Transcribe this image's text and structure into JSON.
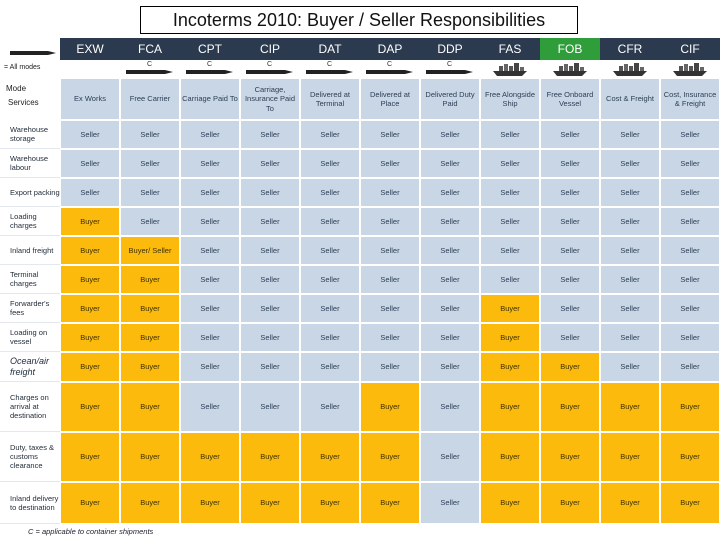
{
  "title": "Incoterms 2010: Buyer / Seller Responsibilities",
  "left_labels": {
    "all_modes": "= All modes",
    "mode": "Mode",
    "services": "Services"
  },
  "terms": [
    {
      "code": "EXW",
      "name": "Ex Works",
      "container": false,
      "transport": "all"
    },
    {
      "code": "FCA",
      "name": "Free Carrier",
      "container": true,
      "transport": "all"
    },
    {
      "code": "CPT",
      "name": "Carriage Paid To",
      "container": true,
      "transport": "all"
    },
    {
      "code": "CIP",
      "name": "Carriage, Insurance Paid To",
      "container": true,
      "transport": "all"
    },
    {
      "code": "DAT",
      "name": "Delivered at Terminal",
      "container": true,
      "transport": "all"
    },
    {
      "code": "DAP",
      "name": "Delivered at Place",
      "container": true,
      "transport": "all"
    },
    {
      "code": "DDP",
      "name": "Delivered Duty Paid",
      "container": true,
      "transport": "all"
    },
    {
      "code": "FAS",
      "name": "Free Alongside Ship",
      "container": false,
      "transport": "sea"
    },
    {
      "code": "FOB",
      "name": "Free Onboard Vessel",
      "container": false,
      "transport": "sea"
    },
    {
      "code": "CFR",
      "name": "Cost & Freight",
      "container": false,
      "transport": "sea"
    },
    {
      "code": "CIF",
      "name": "Cost, Insurance & Freight",
      "container": false,
      "transport": "sea"
    }
  ],
  "container_mark": "C",
  "rows": [
    {
      "label": "Warehouse storage",
      "values": [
        "Seller",
        "Seller",
        "Seller",
        "Seller",
        "Seller",
        "Seller",
        "Seller",
        "Seller",
        "Seller",
        "Seller",
        "Seller"
      ]
    },
    {
      "label": "Warehouse labour",
      "values": [
        "Seller",
        "Seller",
        "Seller",
        "Seller",
        "Seller",
        "Seller",
        "Seller",
        "Seller",
        "Seller",
        "Seller",
        "Seller"
      ]
    },
    {
      "label": "Export packing",
      "values": [
        "Seller",
        "Seller",
        "Seller",
        "Seller",
        "Seller",
        "Seller",
        "Seller",
        "Seller",
        "Seller",
        "Seller",
        "Seller"
      ]
    },
    {
      "label": "Loading charges",
      "values": [
        "Buyer",
        "Seller",
        "Seller",
        "Seller",
        "Seller",
        "Seller",
        "Seller",
        "Seller",
        "Seller",
        "Seller",
        "Seller"
      ]
    },
    {
      "label": "Inland freight",
      "values": [
        "Buyer",
        "Buyer/ Seller",
        "Seller",
        "Seller",
        "Seller",
        "Seller",
        "Seller",
        "Seller",
        "Seller",
        "Seller",
        "Seller"
      ]
    },
    {
      "label": "Terminal charges",
      "values": [
        "Buyer",
        "Buyer",
        "Seller",
        "Seller",
        "Seller",
        "Seller",
        "Seller",
        "Seller",
        "Seller",
        "Seller",
        "Seller"
      ]
    },
    {
      "label": "Forwarder's fees",
      "values": [
        "Buyer",
        "Buyer",
        "Seller",
        "Seller",
        "Seller",
        "Seller",
        "Seller",
        "Buyer",
        "Seller",
        "Seller",
        "Seller"
      ]
    },
    {
      "label": "Loading on vessel",
      "values": [
        "Buyer",
        "Buyer",
        "Seller",
        "Seller",
        "Seller",
        "Seller",
        "Seller",
        "Buyer",
        "Seller",
        "Seller",
        "Seller"
      ]
    },
    {
      "label": "Ocean/air freight",
      "big": true,
      "values": [
        "Buyer",
        "Buyer",
        "Seller",
        "Seller",
        "Seller",
        "Seller",
        "Seller",
        "Buyer",
        "Buyer",
        "Seller",
        "Seller"
      ]
    },
    {
      "label": "Charges on arrival at destination",
      "values": [
        "Buyer",
        "Buyer",
        "Seller",
        "Seller",
        "Seller",
        "Buyer",
        "Seller",
        "Buyer",
        "Buyer",
        "Buyer",
        "Buyer"
      ]
    },
    {
      "label": "Duty, taxes & customs clearance",
      "values": [
        "Buyer",
        "Buyer",
        "Buyer",
        "Buyer",
        "Buyer",
        "Buyer",
        "Seller",
        "Buyer",
        "Buyer",
        "Buyer",
        "Buyer"
      ]
    },
    {
      "label": "Inland delivery to destination",
      "values": [
        "Buyer",
        "Buyer",
        "Buyer",
        "Buyer",
        "Buyer",
        "Buyer",
        "Seller",
        "Buyer",
        "Buyer",
        "Buyer",
        "Buyer"
      ]
    }
  ],
  "footer": "C = applicable to container shipments",
  "colors": {
    "seller": "#c9d6e6",
    "buyer": "#fcbb0c",
    "header": "#2b3a4e",
    "fob_header": "#2e9d3a"
  }
}
